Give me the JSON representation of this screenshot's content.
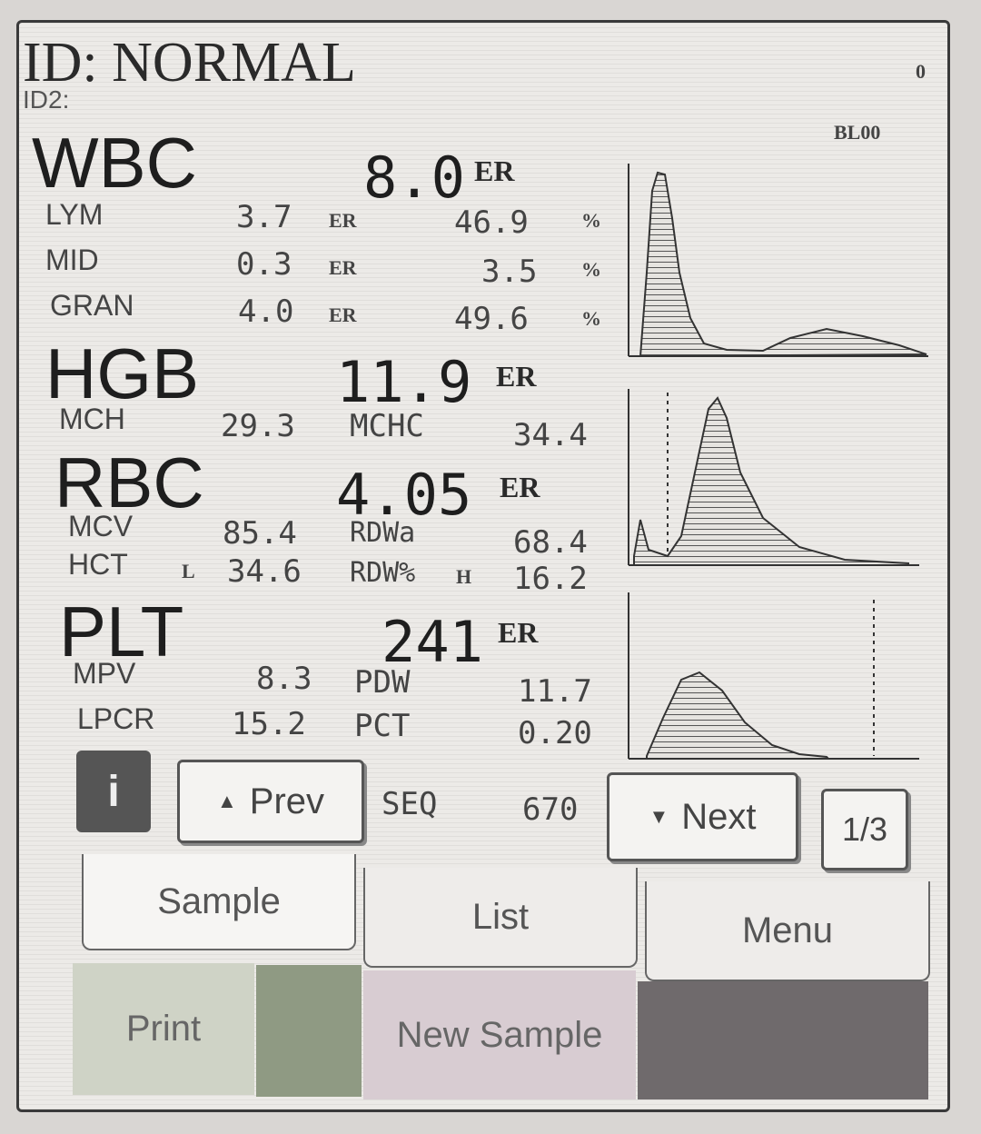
{
  "header": {
    "id": "ID: NORMAL",
    "id2": "ID2:",
    "corner": "0",
    "mode": "BL00"
  },
  "results": [
    {
      "name": "WBC",
      "value": "8.0",
      "flag": "ER",
      "rows": [
        [
          "LYM",
          "3.7",
          "ER",
          "46.9",
          "%"
        ],
        [
          "MID",
          "0.3",
          "ER",
          "3.5",
          "%"
        ],
        [
          "GRAN",
          "4.0",
          "ER",
          "49.6",
          "%"
        ]
      ]
    },
    {
      "name": "HGB",
      "value": "11.9",
      "flag": "ER",
      "rows": [
        [
          "MCH",
          "29.3",
          "MCHC",
          "34.4"
        ]
      ]
    },
    {
      "name": "RBC",
      "value": "4.05",
      "flag": "ER",
      "rows": [
        [
          "MCV",
          "85.4",
          "RDWa",
          "68.4"
        ],
        [
          "HCT",
          "L",
          "34.6",
          "RDW%",
          "H",
          "16.2"
        ]
      ]
    },
    {
      "name": "PLT",
      "value": "241",
      "flag": "ER",
      "rows": [
        [
          "MPV",
          "8.3",
          "PDW",
          "11.7"
        ],
        [
          "LPCR",
          "15.2",
          "PCT",
          "0.20"
        ]
      ]
    }
  ],
  "nav": {
    "prev": "Prev",
    "seq_label": "SEQ",
    "seq": "670",
    "next": "Next",
    "page": "1/3"
  },
  "tabs": [
    "Sample",
    "List",
    "Menu"
  ],
  "actions": [
    "Print",
    "New Sample"
  ]
}
